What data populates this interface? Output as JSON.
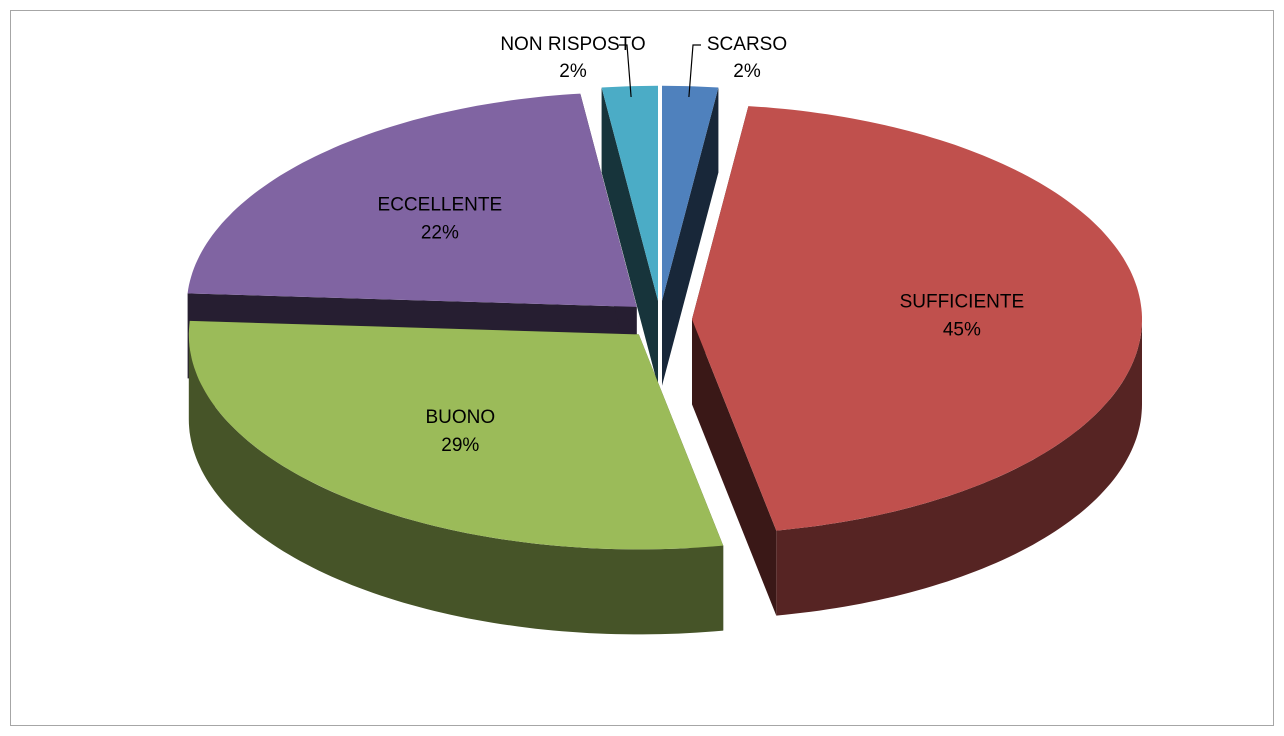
{
  "chart_data": {
    "type": "pie",
    "categories": [
      "SCARSO",
      "SUFFICIENTE",
      "BUONO",
      "ECCELLENTE",
      "NON RISPOSTO"
    ],
    "values": [
      2,
      45,
      29,
      22,
      2
    ],
    "value_labels": [
      "2%",
      "45%",
      "29%",
      "22%",
      "2%"
    ],
    "colors": [
      "#4f81bd",
      "#c0504d",
      "#9bbb59",
      "#8064a2",
      "#4bacc6"
    ]
  }
}
